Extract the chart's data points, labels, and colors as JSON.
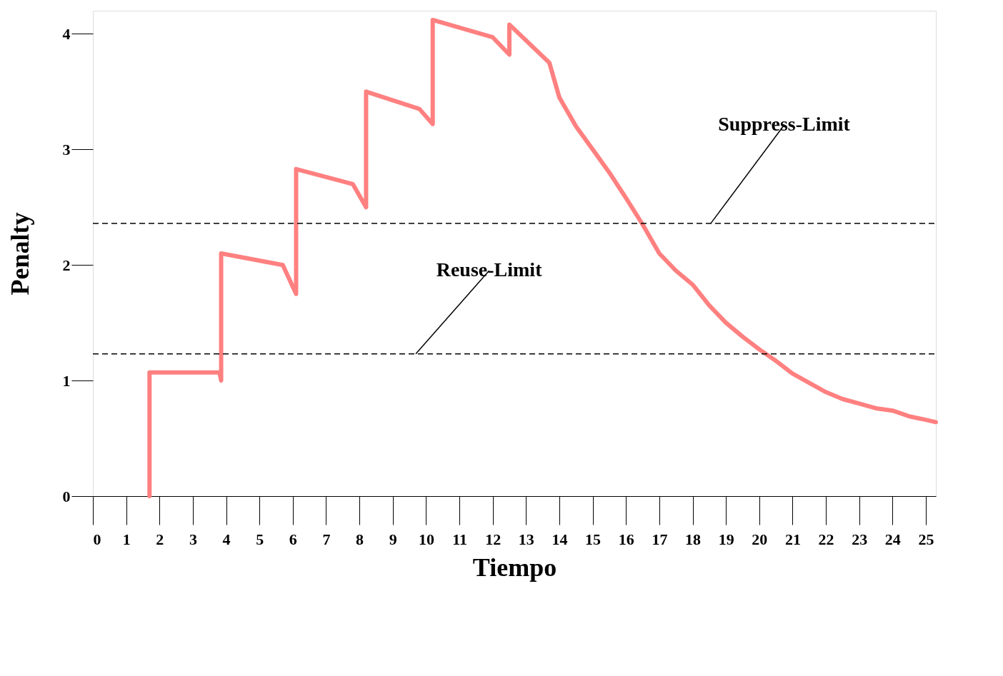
{
  "chart_data": {
    "type": "line",
    "xlabel": "Tiempo",
    "ylabel": "Penalty",
    "x": [
      1.7,
      1.7,
      3.8,
      3.85,
      3.85,
      5.7,
      6.1,
      6.1,
      7.8,
      8.2,
      8.2,
      9.8,
      10.2,
      10.2,
      12.0,
      12.5,
      12.5,
      13.7,
      14,
      14.5,
      15,
      15.5,
      16,
      16.5,
      17,
      17.5,
      18,
      18.5,
      19,
      19.5,
      20,
      20.5,
      21,
      21.5,
      22,
      22.5,
      23,
      23.5,
      24,
      24.5,
      25,
      25.3
    ],
    "series": [
      {
        "color": "#ff8080",
        "values": [
          0,
          1.07,
          1.07,
          1.0,
          2.1,
          2.0,
          1.75,
          2.83,
          2.7,
          2.5,
          3.5,
          3.35,
          3.22,
          4.12,
          3.97,
          3.82,
          4.08,
          3.75,
          3.45,
          3.2,
          3.0,
          2.8,
          2.58,
          2.35,
          2.1,
          1.95,
          1.83,
          1.65,
          1.5,
          1.38,
          1.27,
          1.17,
          1.06,
          0.98,
          0.9,
          0.84,
          0.8,
          0.76,
          0.74,
          0.69,
          0.66,
          0.64
        ]
      }
    ],
    "xlim": [
      0,
      25.3
    ],
    "ylim": [
      0,
      4.2
    ],
    "xticks": [
      0,
      1,
      2,
      3,
      4,
      5,
      6,
      7,
      8,
      9,
      10,
      11,
      12,
      13,
      14,
      15,
      16,
      17,
      18,
      19,
      20,
      21,
      22,
      23,
      24,
      25
    ],
    "yticks": [
      0,
      1,
      2,
      3,
      4
    ],
    "ref_lines": [
      {
        "axis": "y",
        "value": 2.36,
        "label": "Suppress-Limit",
        "color": "#000000",
        "line_style": "dashed"
      },
      {
        "axis": "y",
        "value": 1.23,
        "label": "Reuse-Limit",
        "color": "#000000",
        "line_style": "dashed"
      }
    ],
    "grid": false,
    "marker": "none",
    "line_style": "solid"
  }
}
